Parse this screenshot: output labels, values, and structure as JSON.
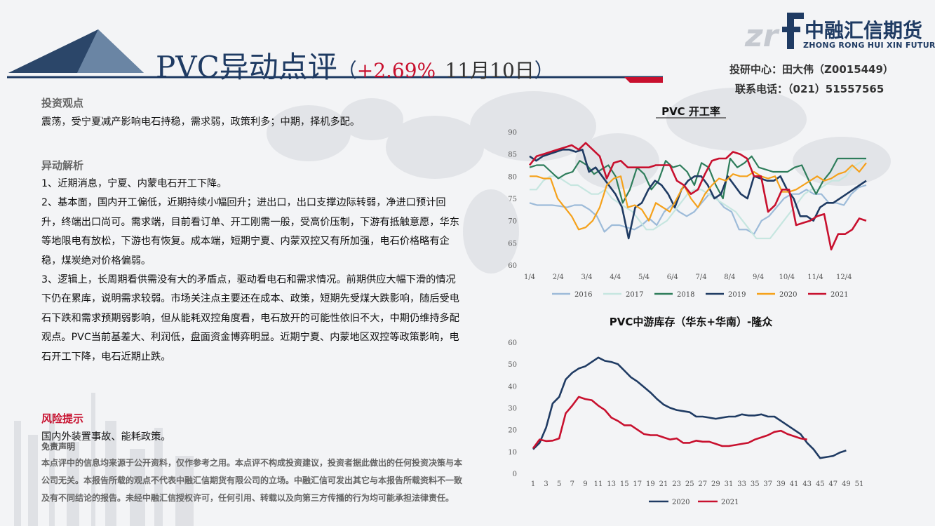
{
  "header": {
    "title_main": "PVC异动点评",
    "title_open": "（",
    "title_pct": "+2.69%",
    "title_date": "11月10日",
    "title_close": "）",
    "logo_cn": "中融汇信期货",
    "logo_en": "ZHONG RONG HUI XIN FUTURES",
    "contact_line1": "投研中心：田大伟（Z0015449）",
    "contact_line2": "联系电话：（021）51557565",
    "colors": {
      "navy": "#1f3b63",
      "red": "#c8102e"
    }
  },
  "sections": {
    "view_heading": "投资观点",
    "view_text": "震荡，受宁夏减产影响电石持稳，需求弱，政策利多；中期，择机多配。",
    "analysis_heading": "异动解析",
    "analysis_1": "1、近期消息，宁夏、内蒙电石开工下降。",
    "analysis_2": "2、基本面，国内开工偏低，近期持续小幅回升；进出口，出口支撑边际转弱，净进口预计回升，终端出口尚可。需求端，目前看订单、开工刚需一般，受高价压制，下游有抵触意愿，华东等地限电有放松，下游也有恢复。成本端，短期宁夏、内蒙双控又有所加强，电石价格略有企稳，煤炭绝对价格偏弱。",
    "analysis_3": "3、逻辑上，长周期看供需没有大的矛盾点，驱动看电石和需求情况。前期供应大幅下滑的情况下仍在累库，说明需求较弱。市场关注点主要还在成本、政策，短期先受煤大跌影响，随后受电石下跌和需求预期弱影响，但从能耗双控角度看，电石放开的可能性依旧不大，中期仍维持多配观点。PVC当前基差大、利润低，盘面资金博弈明显。近期宁夏、内蒙地区双控等政策影响，电石开工下降，电石近期止跌。",
    "risk_heading": "风险提示",
    "risk_text": "国内外装置事故、能耗政策。",
    "disclaimer_heading": "免责声明",
    "disclaimer_text": "本点评中的信息均来源于公开资料，仅作参考之用。本点评不构成投资建议，投资者据此做出的任何投资决策与本公司无关。本报告所载的观点不代表中融汇信期货有限公司的立场。中融汇信可发出其它与本报告所载资料不一致及有不同结论的报告。未经中融汇信授权许可，任何引用、转载以及向第三方传播的行为均可能承担法律责任。"
  },
  "chart_data": [
    {
      "type": "line",
      "title": "PVC 开工率",
      "x_ticks": [
        "1/4",
        "2/4",
        "3/4",
        "4/4",
        "5/4",
        "6/4",
        "7/4",
        "8/4",
        "9/4",
        "10/4",
        "11/4",
        "12/4"
      ],
      "ylim": [
        60,
        90
      ],
      "y_ticks": [
        60,
        65,
        70,
        75,
        80,
        85,
        90
      ],
      "legend_position": "bottom",
      "series": [
        {
          "name": "2016",
          "color": "#9dbbd9",
          "values": [
            74,
            73.5,
            73.5,
            73.5,
            73.3,
            73,
            73.5,
            73.5,
            72.5,
            71,
            67.5,
            69,
            69,
            68.5,
            68,
            69,
            70.5,
            69,
            72,
            73.5,
            72,
            71,
            72,
            74,
            76,
            75,
            73,
            72,
            68,
            68,
            67,
            70,
            71,
            73,
            75,
            76,
            76,
            77,
            76,
            76,
            74,
            74,
            73.5,
            76,
            77.5,
            78
          ]
        },
        {
          "name": "2017",
          "color": "#c6e6e0",
          "values": [
            77,
            77,
            79,
            80,
            80,
            79,
            78,
            78,
            77,
            76,
            76,
            77,
            75,
            74,
            73,
            72,
            70,
            68,
            68,
            69,
            70,
            72,
            74,
            76,
            77,
            77,
            76,
            75,
            74,
            73,
            72,
            70,
            68,
            66,
            66,
            66,
            68,
            70,
            72,
            74,
            76,
            77,
            77,
            78,
            79,
            79,
            80,
            82,
            83,
            84
          ]
        },
        {
          "name": "2018",
          "color": "#2e7d5b",
          "values": [
            82,
            82.5,
            82.5,
            81,
            79.5,
            80.5,
            81,
            83.5,
            82.5,
            80.5,
            81.5,
            82.5,
            80,
            74,
            77,
            82,
            80.5,
            77,
            79,
            83.5,
            82,
            82.5,
            81,
            78,
            83,
            82,
            78,
            75,
            84,
            82,
            83,
            84.5,
            82,
            81.5,
            81,
            81,
            81,
            82,
            82.5,
            79,
            76,
            79,
            81,
            84,
            84,
            84,
            84,
            84
          ]
        },
        {
          "name": "2019",
          "color": "#1f3b63",
          "values": [
            84.5,
            83.5,
            84.5,
            85,
            85.5,
            86,
            86,
            85.5,
            86,
            81,
            82,
            80,
            78,
            76,
            73,
            66,
            73,
            74,
            77,
            79,
            78,
            76,
            73,
            77,
            79,
            80,
            80,
            78,
            75,
            76,
            80,
            78,
            76,
            75,
            80,
            79.5,
            79,
            79,
            80,
            77,
            75,
            71,
            71,
            70,
            73,
            74,
            74,
            75,
            76,
            77,
            78,
            79
          ]
        },
        {
          "name": "2020",
          "color": "#f5a11a",
          "values": [
            80,
            80,
            79.5,
            79.5,
            75,
            73,
            71,
            68,
            68.5,
            70,
            73,
            78,
            79.5,
            80,
            73,
            73.5,
            72.5,
            70,
            74,
            73,
            72,
            75,
            78,
            75,
            73,
            76,
            78,
            79.5,
            79,
            80.5,
            80,
            80,
            81,
            80,
            79.5,
            80,
            76.5,
            76.5,
            77,
            78,
            79,
            80,
            79,
            79.5,
            80.5,
            81,
            82.5,
            81,
            83
          ]
        },
        {
          "name": "2021",
          "color": "#c8102e",
          "values": [
            82.5,
            84.5,
            85,
            85.5,
            86,
            86.5,
            87,
            86,
            87.5,
            86,
            84.5,
            79.5,
            83,
            83.5,
            82,
            82,
            82,
            82,
            82.5,
            82.5,
            82.5,
            79,
            78,
            76,
            77,
            80.5,
            83.5,
            84,
            84,
            85.5,
            85,
            84,
            80,
            80,
            72,
            73.5,
            77,
            77,
            69,
            69.5,
            70,
            71,
            71.5,
            63.5,
            67,
            67,
            68,
            70.5,
            70
          ]
        }
      ]
    },
    {
      "type": "line",
      "title": "PVC中游库存（华东+华南）-隆众",
      "x_ticks": [
        "1",
        "3",
        "5",
        "7",
        "9",
        "11",
        "13",
        "15",
        "17",
        "19",
        "21",
        "23",
        "25",
        "27",
        "29",
        "31",
        "33",
        "35",
        "37",
        "39",
        "41",
        "43",
        "45",
        "47",
        "49",
        "51"
      ],
      "ylim": [
        0,
        60
      ],
      "y_ticks": [
        0,
        10,
        20,
        30,
        40,
        50,
        60
      ],
      "legend_position": "bottom",
      "series": [
        {
          "name": "2020",
          "color": "#1f3b63",
          "x_start": 1,
          "values": [
            11,
            14,
            21,
            32,
            35,
            43,
            46,
            48,
            49,
            51,
            53,
            51.5,
            51,
            50,
            47,
            44,
            42,
            39.5,
            37,
            34,
            31.5,
            30,
            29,
            28.5,
            28,
            26,
            26,
            25.5,
            25,
            25.5,
            26,
            26,
            27,
            26.5,
            26.5,
            27,
            26,
            26,
            24,
            22,
            20,
            18,
            14,
            11,
            7,
            7.5,
            8,
            9.5,
            10.5
          ]
        },
        {
          "name": "2021",
          "color": "#c8102e",
          "x_start": 1,
          "values": [
            11.5,
            15.5,
            14.8,
            15,
            16,
            27.5,
            31,
            35,
            34,
            33.5,
            31,
            29,
            25.5,
            24,
            22,
            22,
            20,
            18,
            17.5,
            17.5,
            16.5,
            15.5,
            16,
            14,
            14,
            15,
            14.5,
            14.5,
            13.5,
            12.5,
            12.5,
            13,
            13.5,
            14,
            15.5,
            16.5,
            17.5,
            19,
            19.5,
            18,
            17,
            16,
            15.5
          ]
        }
      ]
    }
  ]
}
